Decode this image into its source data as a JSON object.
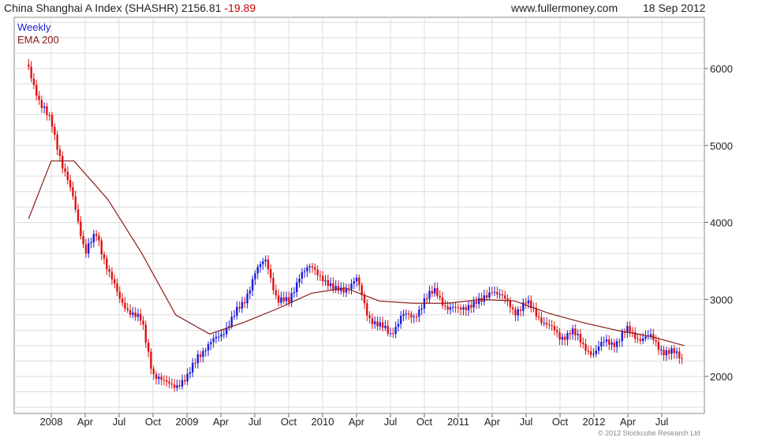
{
  "header": {
    "symbol_title": "China Shanghai A Index (SHASHR)",
    "last": "2156.81",
    "change": "-19.89",
    "site": "www.fullermoney.com",
    "date": "18 Sep 2012"
  },
  "footer": {
    "copyright": "© 2012 Stockcube Research Ltd"
  },
  "chart_data": {
    "type": "line",
    "title": "China Shanghai A Index (SHASHR)",
    "legend": [
      "Weekly",
      "EMA 200"
    ],
    "legend_placement": "top-left",
    "colors": {
      "up": "#1a1adc",
      "down": "#e01010",
      "ema": "#8b1a1a",
      "grid": "#dcdcdc"
    },
    "ylim": [
      1500,
      6600
    ],
    "y_ticks": [
      2000,
      3000,
      4000,
      5000,
      6000
    ],
    "y_tick_labels": [
      "2000",
      "3000",
      "4000",
      "5000",
      "6000"
    ],
    "x_tick_labels": [
      "2008",
      "Apr",
      "Jul",
      "Oct",
      "2009",
      "Apr",
      "Jul",
      "Oct",
      "2010",
      "Apr",
      "Jul",
      "Oct",
      "2011",
      "Apr",
      "Jul",
      "Oct",
      "2012",
      "Apr",
      "Jul"
    ],
    "grid": true,
    "series": [
      {
        "name": "Weekly",
        "x": [
          "2007-11",
          "2007-12",
          "2008-01",
          "2008-02",
          "2008-03",
          "2008-04",
          "2008-05",
          "2008-06",
          "2008-07",
          "2008-08",
          "2008-09",
          "2008-10",
          "2008-11",
          "2008-12",
          "2009-01",
          "2009-02",
          "2009-03",
          "2009-04",
          "2009-05",
          "2009-06",
          "2009-07",
          "2009-08",
          "2009-09",
          "2009-10",
          "2009-11",
          "2009-12",
          "2010-01",
          "2010-02",
          "2010-03",
          "2010-04",
          "2010-05",
          "2010-06",
          "2010-07",
          "2010-08",
          "2010-09",
          "2010-10",
          "2010-11",
          "2010-12",
          "2011-01",
          "2011-02",
          "2011-03",
          "2011-04",
          "2011-05",
          "2011-06",
          "2011-07",
          "2011-08",
          "2011-09",
          "2011-10",
          "2011-11",
          "2011-12",
          "2012-01",
          "2012-02",
          "2012-03",
          "2012-04",
          "2012-05",
          "2012-06",
          "2012-07",
          "2012-08",
          "2012-09"
        ],
        "values": [
          6050,
          5500,
          5350,
          4700,
          4300,
          3600,
          3850,
          3400,
          3000,
          2850,
          2700,
          2050,
          1900,
          1900,
          1950,
          2300,
          2400,
          2550,
          2750,
          2950,
          3350,
          3500,
          3000,
          2950,
          3350,
          3400,
          3300,
          3100,
          3150,
          3250,
          2800,
          2650,
          2550,
          2800,
          2750,
          3000,
          3100,
          2900,
          2850,
          2950,
          2950,
          3150,
          3000,
          2850,
          2950,
          2800,
          2650,
          2500,
          2600,
          2400,
          2300,
          2450,
          2450,
          2600,
          2500,
          2500,
          2350,
          2300,
          2200
        ]
      },
      {
        "name": "EMA 200",
        "x": [
          "2007-11",
          "2008-01",
          "2008-03",
          "2008-06",
          "2008-09",
          "2008-12",
          "2009-03",
          "2009-06",
          "2009-09",
          "2009-12",
          "2010-03",
          "2010-06",
          "2010-09",
          "2010-12",
          "2011-03",
          "2011-06",
          "2011-09",
          "2011-12",
          "2012-03",
          "2012-06",
          "2012-09"
        ],
        "values": [
          4050,
          4800,
          4800,
          4300,
          3600,
          2800,
          2550,
          2700,
          2880,
          3080,
          3150,
          2980,
          2950,
          2950,
          3000,
          2980,
          2820,
          2700,
          2600,
          2520,
          2400
        ]
      }
    ]
  }
}
